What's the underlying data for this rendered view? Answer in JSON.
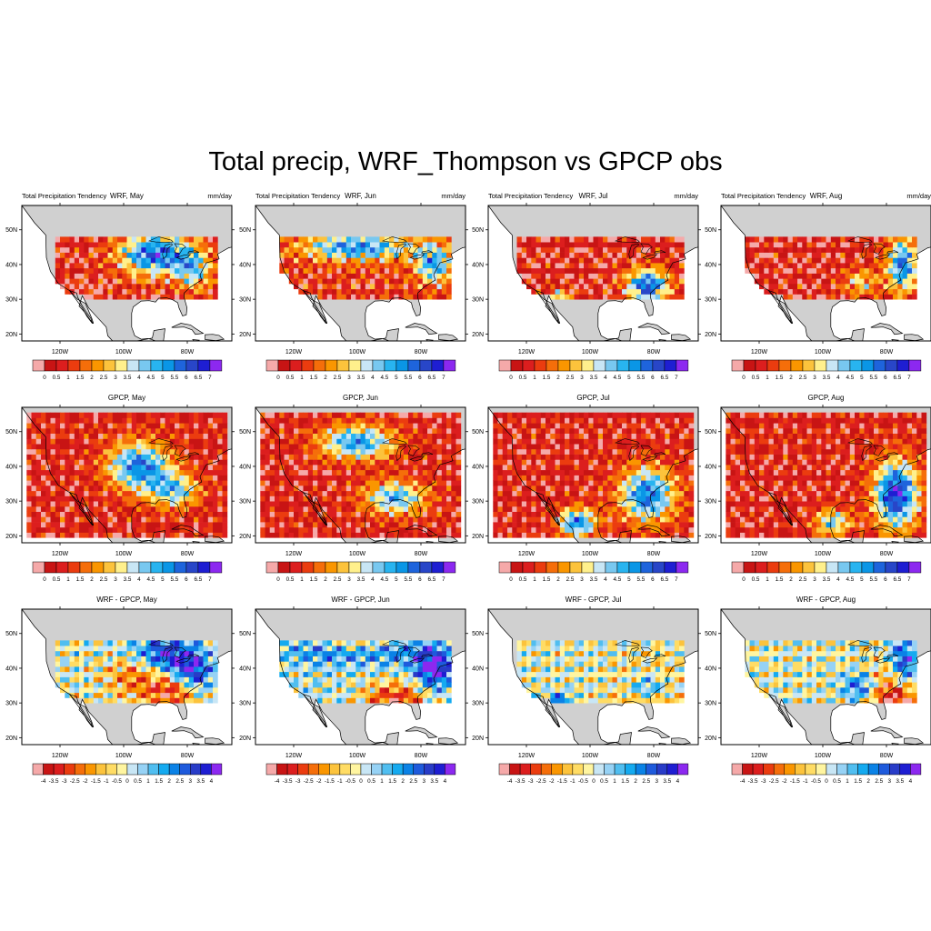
{
  "title": "Total precip, WRF_Thompson vs GPCP obs",
  "left_label": "Total Precipitation Tendency",
  "unit_label": "mm/day",
  "lat_labels": [
    "50N",
    "40N",
    "30N",
    "20N"
  ],
  "lon_labels": [
    "120W",
    "100W",
    "80W"
  ],
  "months": [
    "May",
    "Jun",
    "Jul",
    "Aug"
  ],
  "rows": [
    {
      "kind": "wrf",
      "titles": [
        "WRF, May",
        "WRF, Jun",
        "WRF, Jul",
        "WRF, Aug"
      ],
      "show_left_label": true
    },
    {
      "kind": "gpcp",
      "titles": [
        "GPCP, May",
        "GPCP, Jun",
        "GPCP, Jul",
        "GPCP, Aug"
      ],
      "show_left_label": false
    },
    {
      "kind": "diff",
      "titles": [
        "WRF - GPCP, May",
        "WRF - GPCP, Jun",
        "WRF - GPCP, Jul",
        "WRF - GPCP, Aug"
      ],
      "show_left_label": false
    }
  ],
  "colorbars": {
    "precip": {
      "labels": [
        "0",
        "0.5",
        "1",
        "1.5",
        "2",
        "2.5",
        "3",
        "3.5",
        "4",
        "4.5",
        "5",
        "5.5",
        "6",
        "6.5",
        "7"
      ],
      "colors": [
        "#f5a9a9",
        "#c81414",
        "#dc1e1e",
        "#eb3c0f",
        "#f56e0a",
        "#fa9600",
        "#fcc33c",
        "#fff08c",
        "#c8e6f5",
        "#78c8f0",
        "#28b4f0",
        "#0a96e6",
        "#1e64dc",
        "#2846c8",
        "#1e1ed2",
        "#8c28f0"
      ]
    },
    "diff": {
      "labels": [
        "-4",
        "-3.5",
        "-3",
        "-2.5",
        "-2",
        "-1.5",
        "-1",
        "-0.5",
        "0",
        "0.5",
        "1",
        "1.5",
        "2",
        "2.5",
        "3",
        "3.5",
        "4"
      ],
      "colors": [
        "#f5a9a9",
        "#c81414",
        "#dc1e1e",
        "#eb3c0f",
        "#f56e0a",
        "#fa9600",
        "#fcc33c",
        "#ffdc64",
        "#fff5a0",
        "#c8e6f5",
        "#96d2f5",
        "#50bef0",
        "#14aaf0",
        "#0a82e6",
        "#1e5adc",
        "#283cc8",
        "#1e1ed2",
        "#8c28f0"
      ]
    }
  },
  "colors": {
    "land": "#d0d0d0",
    "ocean": "#ffffff",
    "coast": "#000000"
  },
  "chart_data": [
    {
      "type": "heatmap",
      "panel": "WRF, May",
      "units": "mm/day",
      "colorbar_range": [
        0,
        7
      ],
      "domain": "continental US",
      "pattern": "wet (4-7+) over central and eastern US and Great Lakes, dry (0-1) over the West and southern Plains"
    },
    {
      "type": "heatmap",
      "panel": "WRF, Jun",
      "units": "mm/day",
      "colorbar_range": [
        0,
        7
      ],
      "domain": "continental US",
      "pattern": "wet band across northern tier and Northeast, dry south and west"
    },
    {
      "type": "heatmap",
      "panel": "WRF, Jul",
      "units": "mm/day",
      "colorbar_range": [
        0,
        7
      ],
      "domain": "continental US",
      "pattern": "wet over Southeast and Appalachians, mostly dry elsewhere"
    },
    {
      "type": "heatmap",
      "panel": "WRF, Aug",
      "units": "mm/day",
      "colorbar_range": [
        0,
        7
      ],
      "domain": "continental US",
      "pattern": "wet along East Coast and Northeast, dry West and central"
    },
    {
      "type": "heatmap",
      "panel": "GPCP, May",
      "units": "mm/day",
      "colorbar_range": [
        0,
        7
      ],
      "domain": "North America 20N-55N",
      "pattern": "wet central and southeastern US, dry Southwest and Mexico"
    },
    {
      "type": "heatmap",
      "panel": "GPCP, Jun",
      "units": "mm/day",
      "colorbar_range": [
        0,
        7
      ],
      "domain": "North America 20N-55N",
      "pattern": "wet northern Plains and Gulf coast, dry West"
    },
    {
      "type": "heatmap",
      "panel": "GPCP, Jul",
      "units": "mm/day",
      "colorbar_range": [
        0,
        7
      ],
      "domain": "North America 20N-55N",
      "pattern": "wet Southeast, Gulf and Mexican monsoon, dry West"
    },
    {
      "type": "heatmap",
      "panel": "GPCP, Aug",
      "units": "mm/day",
      "colorbar_range": [
        0,
        7
      ],
      "domain": "North America 20N-55N",
      "pattern": "wet Southeast, Florida and Atlantic, dry West"
    },
    {
      "type": "heatmap",
      "panel": "WRF - GPCP, May",
      "units": "mm/day",
      "colorbar_range": [
        -4,
        4
      ],
      "domain": "continental US",
      "pattern": "positive bias north and east, slight negative south-central"
    },
    {
      "type": "heatmap",
      "panel": "WRF - GPCP, Jun",
      "units": "mm/day",
      "colorbar_range": [
        -4,
        4
      ],
      "domain": "continental US",
      "pattern": "positive bias north and east, negative central Plains"
    },
    {
      "type": "heatmap",
      "panel": "WRF - GPCP, Jul",
      "units": "mm/day",
      "colorbar_range": [
        -4,
        4
      ],
      "domain": "continental US",
      "pattern": "mixed, negative central, positive Southeast"
    },
    {
      "type": "heatmap",
      "panel": "WRF - GPCP, Aug",
      "units": "mm/day",
      "colorbar_range": [
        -4,
        4
      ],
      "domain": "continental US",
      "pattern": "mixed, positive East Coast, negative Gulf coast"
    }
  ]
}
